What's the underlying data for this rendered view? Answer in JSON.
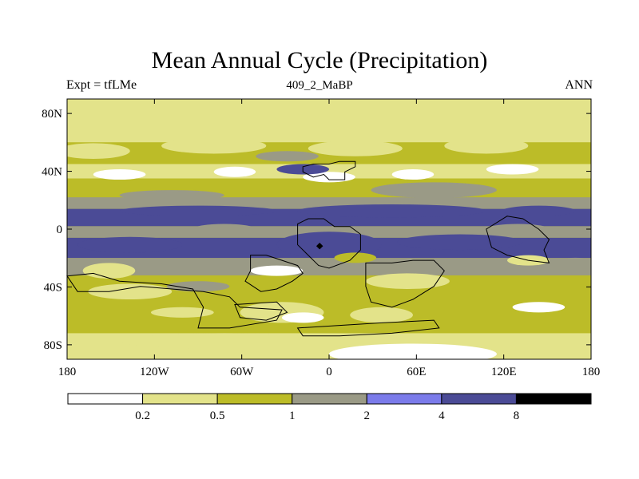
{
  "chart_data": {
    "type": "heatmap",
    "title": "Mean Annual Cycle (Precipitation)",
    "subtitle_left": "Expt = tfLMe",
    "subtitle_center": "409_2_MaBP",
    "subtitle_right": "ANN",
    "x_ticks": [
      "180",
      "120W",
      "60W",
      "0",
      "60E",
      "120E",
      "180"
    ],
    "y_ticks": [
      "80N",
      "40N",
      "0",
      "40S",
      "80S"
    ],
    "xlim": [
      -180,
      180
    ],
    "ylim": [
      -90,
      90
    ],
    "colorbar": {
      "labels": [
        "0.2",
        "0.5",
        "1",
        "2",
        "4",
        "8"
      ],
      "colors": [
        "#ffffff",
        "#e3e38a",
        "#bcbc28",
        "#9a9a86",
        "#7b7bea",
        "#4b4b96",
        "#000000"
      ]
    },
    "precip_bands": [
      {
        "lat_min": 60,
        "lat_max": 90,
        "level": 1
      },
      {
        "lat_min": 45,
        "lat_max": 60,
        "level": 2
      },
      {
        "lat_min": 35,
        "lat_max": 45,
        "level": 1
      },
      {
        "lat_min": 22,
        "lat_max": 35,
        "level": 2
      },
      {
        "lat_min": 14,
        "lat_max": 22,
        "level": 3
      },
      {
        "lat_min": 2,
        "lat_max": 14,
        "level": 5
      },
      {
        "lat_min": -6,
        "lat_max": 2,
        "level": 3
      },
      {
        "lat_min": -20,
        "lat_max": -6,
        "level": 5
      },
      {
        "lat_min": -32,
        "lat_max": -20,
        "level": 3
      },
      {
        "lat_min": -55,
        "lat_max": -32,
        "level": 2
      },
      {
        "lat_min": -72,
        "lat_max": -55,
        "level": 2
      },
      {
        "lat_min": -90,
        "lat_max": -72,
        "level": 1
      }
    ]
  }
}
